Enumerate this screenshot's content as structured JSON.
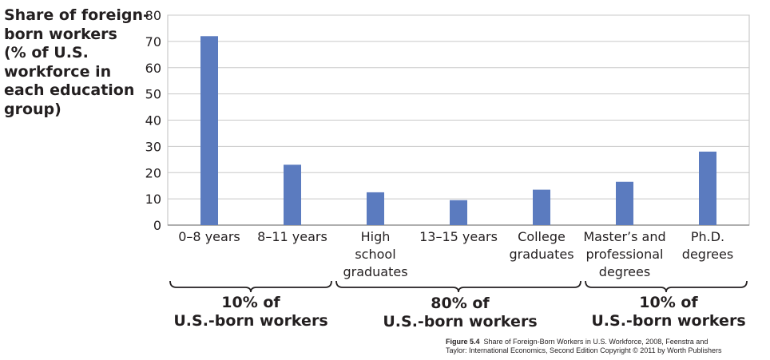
{
  "chart_data": {
    "type": "bar",
    "ylabel_lines": [
      "Share of foreign-",
      "born workers",
      "(% of U.S.",
      "workforce in",
      "each education",
      "group)"
    ],
    "categories": [
      [
        "0–8 years"
      ],
      [
        "8–11 years"
      ],
      [
        "High",
        "school",
        "graduates"
      ],
      [
        "13–15 years"
      ],
      [
        "College",
        "graduates"
      ],
      [
        "Master’s and",
        "professional",
        "degrees"
      ],
      [
        "Ph.D.",
        "degrees"
      ]
    ],
    "values": [
      72,
      23,
      12.5,
      9.5,
      13.5,
      16.5,
      28
    ],
    "ylim": [
      0,
      80
    ],
    "yticks": [
      0,
      10,
      20,
      30,
      40,
      50,
      60,
      70,
      80
    ],
    "grid": true,
    "bar_color": "#5b7bbf",
    "groups": [
      {
        "label_lines": [
          "10% of",
          "U.S.-born workers"
        ],
        "span": [
          0,
          1
        ]
      },
      {
        "label_lines": [
          "80% of",
          "U.S.-born workers"
        ],
        "span": [
          2,
          4
        ]
      },
      {
        "label_lines": [
          "10% of",
          "U.S.-born workers"
        ],
        "span": [
          5,
          6
        ]
      }
    ]
  },
  "caption": {
    "figure_label": "Figure 5.4",
    "line1": "Share of Foreign-Born Workers in U.S. Workforce, 2008, Feenstra and",
    "line2": "Taylor: International Economics, Second Edition Copyright © 2011 by Worth Publishers"
  }
}
